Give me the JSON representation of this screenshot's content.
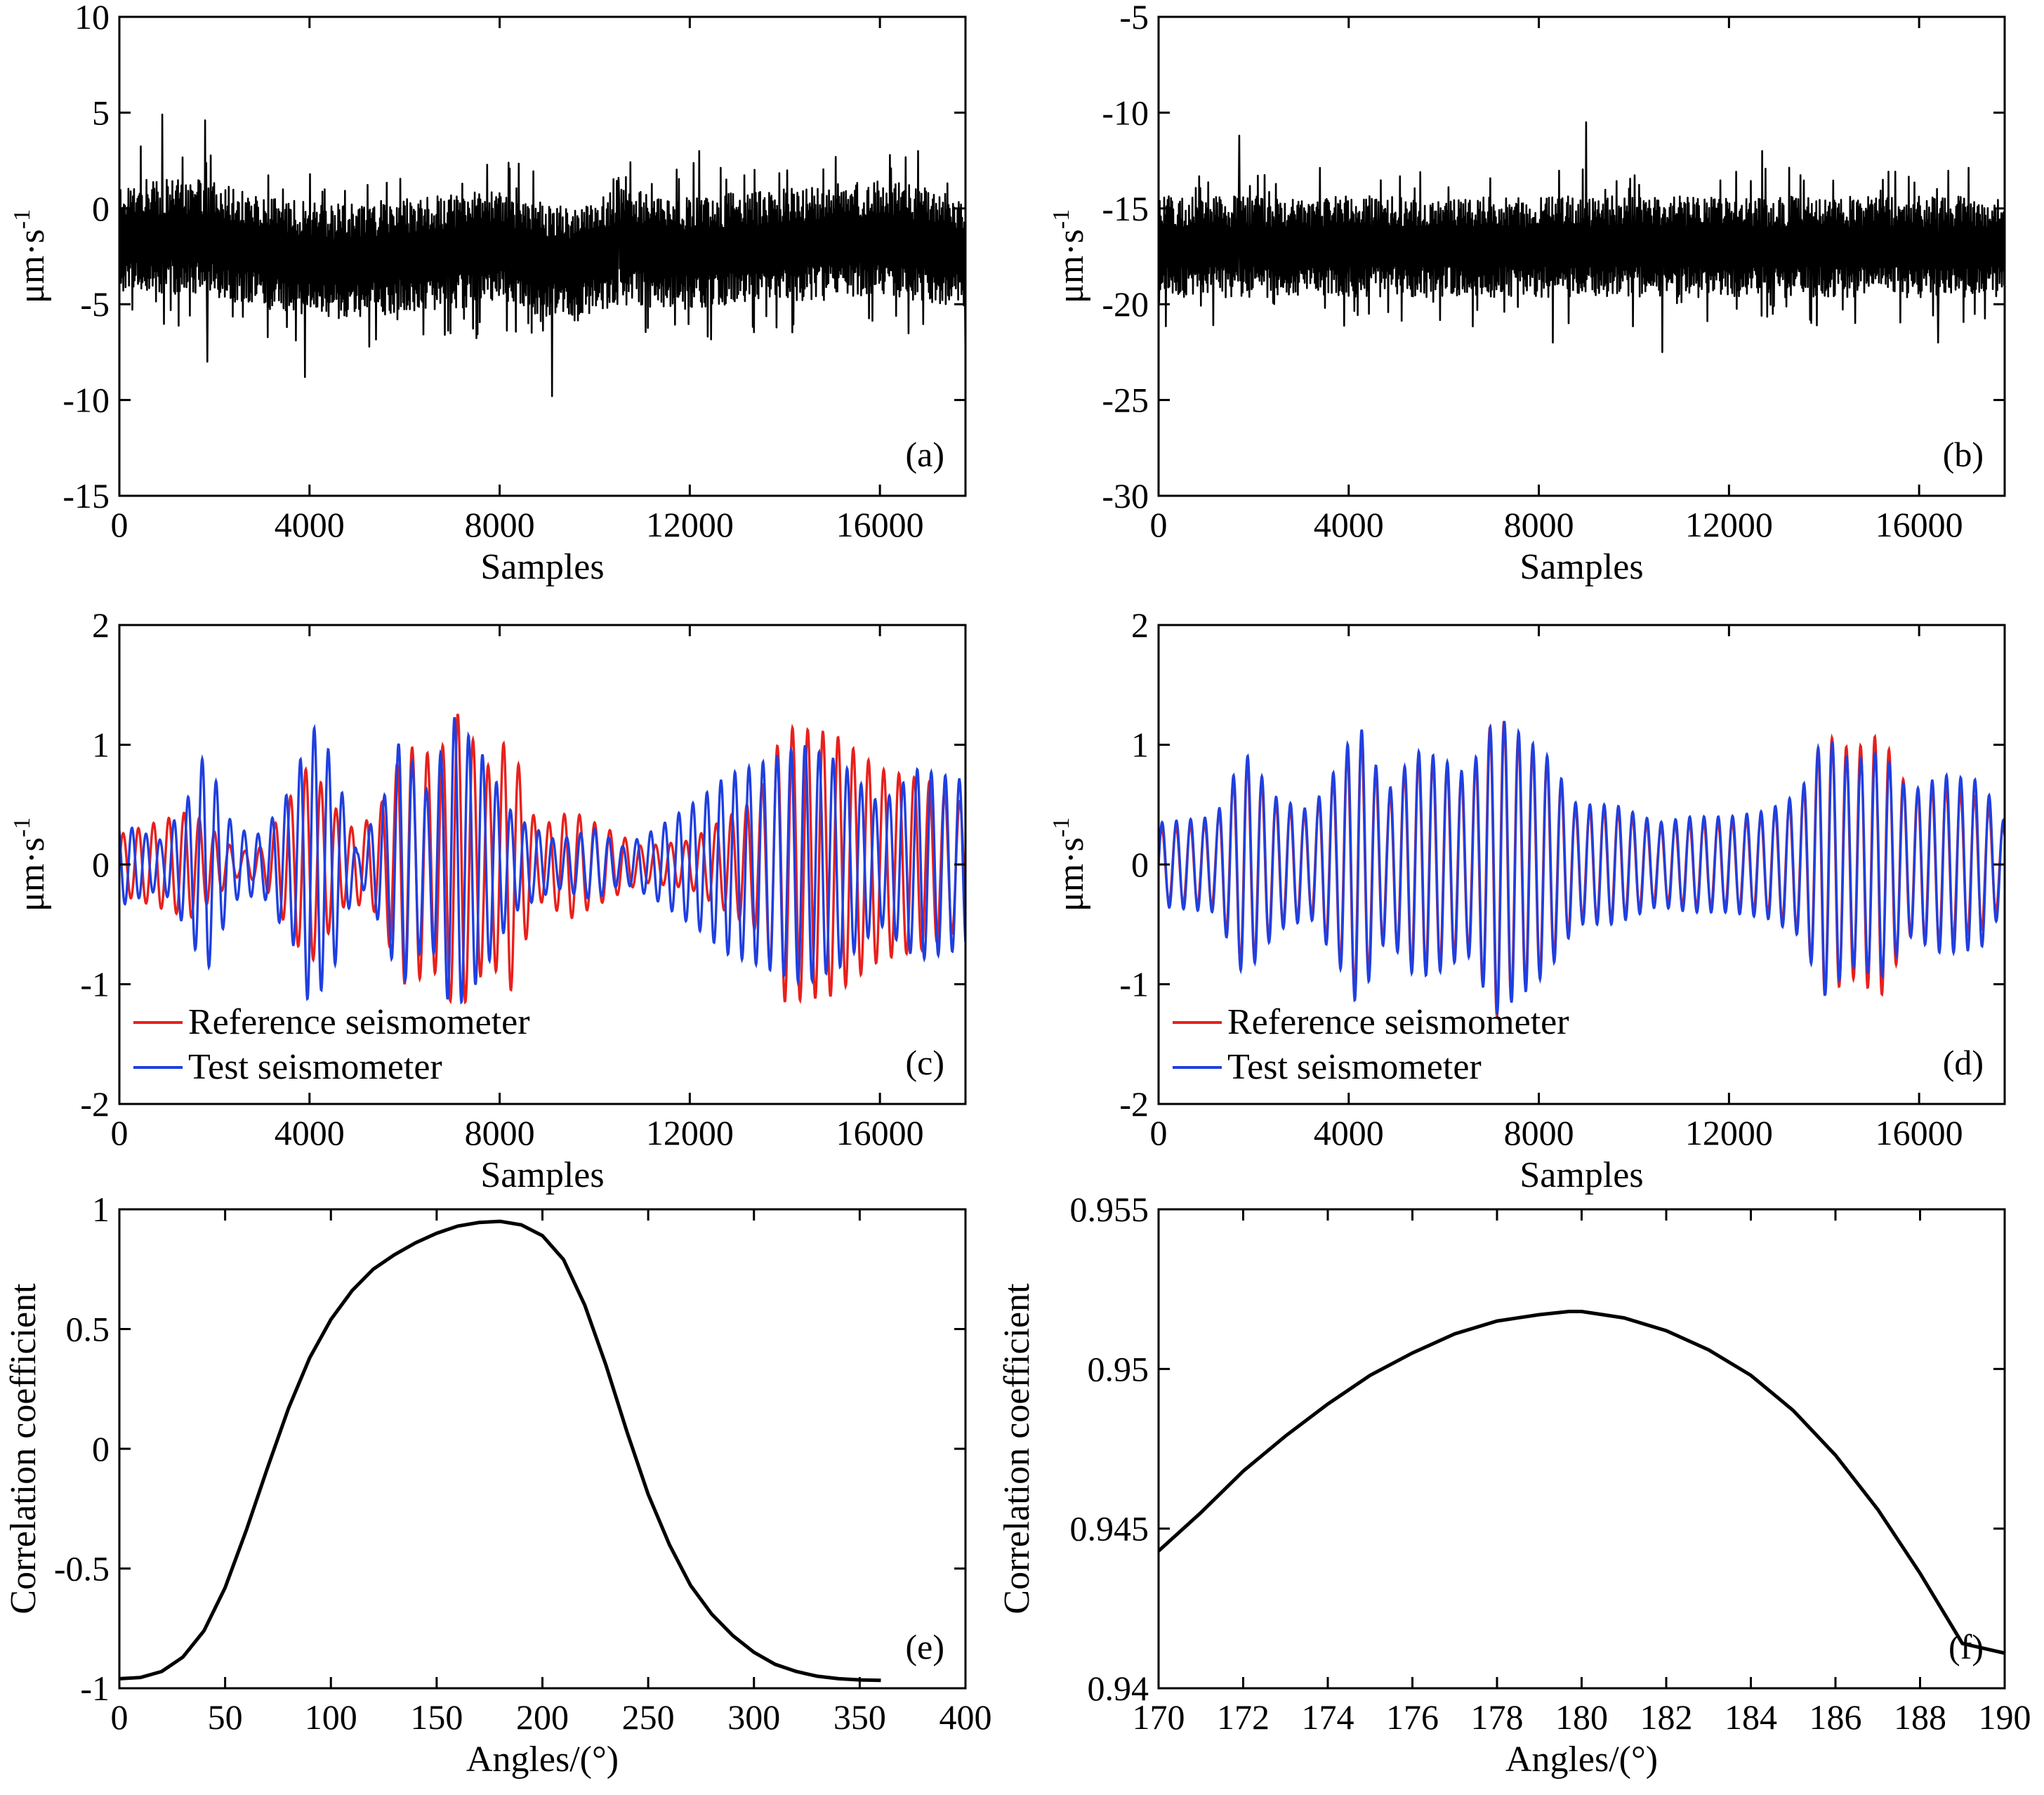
{
  "colors": {
    "reference": "#e8201c",
    "test": "#1f3fe0",
    "trace": "#000000",
    "frame": "#000000"
  },
  "chart_data": [
    {
      "id": "a",
      "type": "line",
      "panel_label": "(a)",
      "xlabel": "Samples",
      "ylabel": "μm·s",
      "ylabel_sup": "-1",
      "xlim": [
        0,
        17800
      ],
      "ylim": [
        -15,
        10
      ],
      "xticks": [
        0,
        4000,
        8000,
        12000,
        16000
      ],
      "yticks": [
        -15,
        -10,
        -5,
        0,
        5,
        10
      ],
      "series": [
        {
          "style": "noise",
          "color": "#000000",
          "baseline": [
            [
              0,
              -1.5
            ],
            [
              1800,
              -1.5
            ],
            [
              3500,
              -2.5
            ],
            [
              4500,
              -2.8
            ],
            [
              6000,
              -2.5
            ],
            [
              8000,
              -2
            ],
            [
              9500,
              -3
            ],
            [
              10500,
              -2
            ],
            [
              12000,
              -2.3
            ],
            [
              14000,
              -2
            ],
            [
              16000,
              -1.5
            ],
            [
              17800,
              -2.3
            ]
          ],
          "half_width": 2.5,
          "peaks": [
            [
              900,
              4.9
            ],
            [
              1800,
              4.6
            ],
            [
              1850,
              -8
            ],
            [
              3900,
              -8.8
            ],
            [
              9100,
              -9.8
            ],
            [
              10500,
              1.6
            ],
            [
              12200,
              3
            ],
            [
              16800,
              3
            ],
            [
              17800,
              -8
            ]
          ]
        }
      ]
    },
    {
      "id": "b",
      "type": "line",
      "panel_label": "(b)",
      "xlabel": "Samples",
      "ylabel": "μm·s",
      "ylabel_sup": "-1",
      "xlim": [
        0,
        17800
      ],
      "ylim": [
        -30,
        -5
      ],
      "xticks": [
        0,
        4000,
        8000,
        12000,
        16000
      ],
      "yticks": [
        -30,
        -25,
        -20,
        -15,
        -10,
        -5
      ],
      "series": [
        {
          "style": "noise",
          "color": "#000000",
          "baseline": [
            [
              0,
              -17
            ],
            [
              17800,
              -17
            ]
          ],
          "half_width": 2.2,
          "peaks": [
            [
              1700,
              -11.2
            ],
            [
              9000,
              -10.5
            ],
            [
              12700,
              -12
            ],
            [
              8300,
              -22
            ],
            [
              10600,
              -22.5
            ],
            [
              16400,
              -22
            ]
          ]
        }
      ]
    },
    {
      "id": "c",
      "type": "line",
      "panel_label": "(c)",
      "xlabel": "Samples",
      "ylabel": "μm·s",
      "ylabel_sup": "-1",
      "xlim": [
        0,
        17800
      ],
      "ylim": [
        -2,
        2
      ],
      "xticks": [
        0,
        4000,
        8000,
        12000,
        16000
      ],
      "yticks": [
        -2,
        -1,
        0,
        1,
        2
      ],
      "legend_position": "bottom-left",
      "series": [
        {
          "name": "Reference seismometer",
          "color": "#e8201c",
          "style": "wave",
          "period": 320,
          "phase": 0.0,
          "envelope": [
            [
              0,
              0.25
            ],
            [
              1500,
              0.45
            ],
            [
              2500,
              0.1
            ],
            [
              3000,
              0.15
            ],
            [
              4000,
              0.85
            ],
            [
              4800,
              0.3
            ],
            [
              5400,
              0.4
            ],
            [
              6000,
              1.0
            ],
            [
              6700,
              0.9
            ],
            [
              7100,
              1.27
            ],
            [
              7800,
              0.8
            ],
            [
              8200,
              1.1
            ],
            [
              8800,
              0.3
            ],
            [
              9500,
              0.45
            ],
            [
              11000,
              0.15
            ],
            [
              12000,
              0.2
            ],
            [
              12800,
              0.4
            ],
            [
              13400,
              0.55
            ],
            [
              14000,
              1.15
            ],
            [
              15000,
              1.1
            ],
            [
              16000,
              0.8
            ],
            [
              17000,
              0.7
            ],
            [
              17800,
              0.5
            ]
          ]
        },
        {
          "name": "Test seismometer",
          "color": "#1f3fe0",
          "style": "wave",
          "period": 295,
          "phase": 2.2,
          "envelope": [
            [
              0,
              0.35
            ],
            [
              900,
              0.2
            ],
            [
              1500,
              0.6
            ],
            [
              1800,
              0.95
            ],
            [
              2400,
              0.3
            ],
            [
              3000,
              0.25
            ],
            [
              3700,
              0.7
            ],
            [
              4000,
              1.2
            ],
            [
              4500,
              0.9
            ],
            [
              5000,
              0.1
            ],
            [
              5600,
              0.6
            ],
            [
              5900,
              1.05
            ],
            [
              6500,
              0.6
            ],
            [
              7000,
              1.25
            ],
            [
              7600,
              0.95
            ],
            [
              8300,
              0.4
            ],
            [
              9200,
              0.2
            ],
            [
              10000,
              0.3
            ],
            [
              10600,
              0.15
            ],
            [
              11300,
              0.3
            ],
            [
              12200,
              0.55
            ],
            [
              12800,
              0.75
            ],
            [
              13500,
              0.85
            ],
            [
              14400,
              1.0
            ],
            [
              15200,
              0.85
            ],
            [
              16000,
              0.5
            ],
            [
              16800,
              0.8
            ],
            [
              17800,
              0.7
            ]
          ]
        }
      ]
    },
    {
      "id": "d",
      "type": "line",
      "panel_label": "(d)",
      "xlabel": "Samples",
      "ylabel": "μm·s",
      "ylabel_sup": "-1",
      "xlim": [
        0,
        17800
      ],
      "ylim": [
        -2,
        2
      ],
      "xticks": [
        0,
        4000,
        8000,
        12000,
        16000
      ],
      "yticks": [
        -2,
        -1,
        0,
        1,
        2
      ],
      "legend_position": "bottom-left",
      "series": [
        {
          "name": "Reference seismometer",
          "color": "#e8201c",
          "style": "wave",
          "period": 300,
          "phase": 0.15,
          "envelope": [
            [
              0,
              0.3
            ],
            [
              1200,
              0.35
            ],
            [
              1800,
              0.9
            ],
            [
              2500,
              0.5
            ],
            [
              3200,
              0.4
            ],
            [
              3800,
              0.8
            ],
            [
              4200,
              1.1
            ],
            [
              4800,
              0.55
            ],
            [
              5400,
              0.9
            ],
            [
              5900,
              0.85
            ],
            [
              6500,
              0.7
            ],
            [
              7100,
              1.27
            ],
            [
              7600,
              1.05
            ],
            [
              8200,
              0.85
            ],
            [
              8800,
              0.45
            ],
            [
              9600,
              0.45
            ],
            [
              10500,
              0.3
            ],
            [
              11200,
              0.35
            ],
            [
              12000,
              0.35
            ],
            [
              12800,
              0.4
            ],
            [
              13500,
              0.55
            ],
            [
              14000,
              1.1
            ],
            [
              14600,
              0.95
            ],
            [
              15200,
              1.1
            ],
            [
              15800,
              0.6
            ],
            [
              16500,
              0.65
            ],
            [
              17300,
              0.55
            ],
            [
              17800,
              0.3
            ]
          ]
        },
        {
          "name": "Test seismometer",
          "color": "#1f3fe0",
          "style": "wave",
          "period": 300,
          "phase": 0.0,
          "envelope": [
            [
              0,
              0.35
            ],
            [
              1200,
              0.4
            ],
            [
              1800,
              0.95
            ],
            [
              2500,
              0.55
            ],
            [
              3200,
              0.45
            ],
            [
              3800,
              0.85
            ],
            [
              4200,
              1.2
            ],
            [
              4800,
              0.6
            ],
            [
              5400,
              0.95
            ],
            [
              5900,
              0.9
            ],
            [
              6500,
              0.75
            ],
            [
              7100,
              1.25
            ],
            [
              7600,
              1.1
            ],
            [
              8200,
              0.9
            ],
            [
              8800,
              0.5
            ],
            [
              9600,
              0.5
            ],
            [
              10500,
              0.35
            ],
            [
              11200,
              0.4
            ],
            [
              12000,
              0.4
            ],
            [
              12800,
              0.45
            ],
            [
              13500,
              0.6
            ],
            [
              14000,
              1.1
            ],
            [
              14600,
              0.85
            ],
            [
              15200,
              0.95
            ],
            [
              15800,
              0.6
            ],
            [
              16500,
              0.75
            ],
            [
              17300,
              0.7
            ],
            [
              17800,
              0.35
            ]
          ]
        }
      ]
    },
    {
      "id": "e",
      "type": "line",
      "panel_label": "(e)",
      "xlabel": "Angles/(°)",
      "ylabel": "Correlation coefficient",
      "xlim": [
        0,
        400
      ],
      "ylim": [
        -1,
        1
      ],
      "xticks": [
        0,
        50,
        100,
        150,
        200,
        250,
        300,
        350,
        400
      ],
      "yticks": [
        -1,
        -0.5,
        0,
        0.5,
        1
      ],
      "series": [
        {
          "style": "curve",
          "color": "#000000",
          "points": [
            [
              0,
              -0.96
            ],
            [
              10,
              -0.955
            ],
            [
              20,
              -0.93
            ],
            [
              30,
              -0.87
            ],
            [
              40,
              -0.76
            ],
            [
              50,
              -0.58
            ],
            [
              60,
              -0.34
            ],
            [
              70,
              -0.08
            ],
            [
              80,
              0.17
            ],
            [
              90,
              0.38
            ],
            [
              100,
              0.54
            ],
            [
              110,
              0.66
            ],
            [
              120,
              0.75
            ],
            [
              130,
              0.81
            ],
            [
              140,
              0.86
            ],
            [
              150,
              0.9
            ],
            [
              160,
              0.93
            ],
            [
              170,
              0.945
            ],
            [
              180,
              0.95
            ],
            [
              190,
              0.935
            ],
            [
              200,
              0.89
            ],
            [
              210,
              0.79
            ],
            [
              220,
              0.6
            ],
            [
              230,
              0.35
            ],
            [
              240,
              0.07
            ],
            [
              250,
              -0.19
            ],
            [
              260,
              -0.4
            ],
            [
              270,
              -0.57
            ],
            [
              280,
              -0.69
            ],
            [
              290,
              -0.78
            ],
            [
              300,
              -0.85
            ],
            [
              310,
              -0.9
            ],
            [
              320,
              -0.93
            ],
            [
              330,
              -0.95
            ],
            [
              340,
              -0.96
            ],
            [
              350,
              -0.965
            ],
            [
              360,
              -0.967
            ]
          ]
        }
      ]
    },
    {
      "id": "f",
      "type": "line",
      "panel_label": "(f)",
      "xlabel": "Angles/(°)",
      "ylabel": "Correlation coefficient",
      "xlim": [
        170,
        190
      ],
      "ylim": [
        0.94,
        0.955
      ],
      "xticks": [
        170,
        172,
        174,
        176,
        178,
        180,
        182,
        184,
        186,
        188,
        190
      ],
      "yticks": [
        0.94,
        0.945,
        0.95,
        0.955
      ],
      "ytick_labels": [
        "0.94",
        "0.945",
        "0.95",
        "0.955"
      ],
      "series": [
        {
          "style": "curve",
          "color": "#000000",
          "points": [
            [
              170,
              0.9443
            ],
            [
              171,
              0.9455
            ],
            [
              172,
              0.9468
            ],
            [
              173,
              0.9479
            ],
            [
              174,
              0.9489
            ],
            [
              175,
              0.9498
            ],
            [
              176,
              0.9505
            ],
            [
              177,
              0.9511
            ],
            [
              178,
              0.9515
            ],
            [
              179,
              0.9517
            ],
            [
              179.7,
              0.9518
            ],
            [
              180,
              0.9518
            ],
            [
              181,
              0.9516
            ],
            [
              182,
              0.9512
            ],
            [
              183,
              0.9506
            ],
            [
              184,
              0.9498
            ],
            [
              185,
              0.9487
            ],
            [
              186,
              0.9473
            ],
            [
              187,
              0.9456
            ],
            [
              188,
              0.9436
            ],
            [
              189,
              0.9414
            ],
            [
              190,
              0.9411
            ]
          ]
        }
      ]
    }
  ]
}
